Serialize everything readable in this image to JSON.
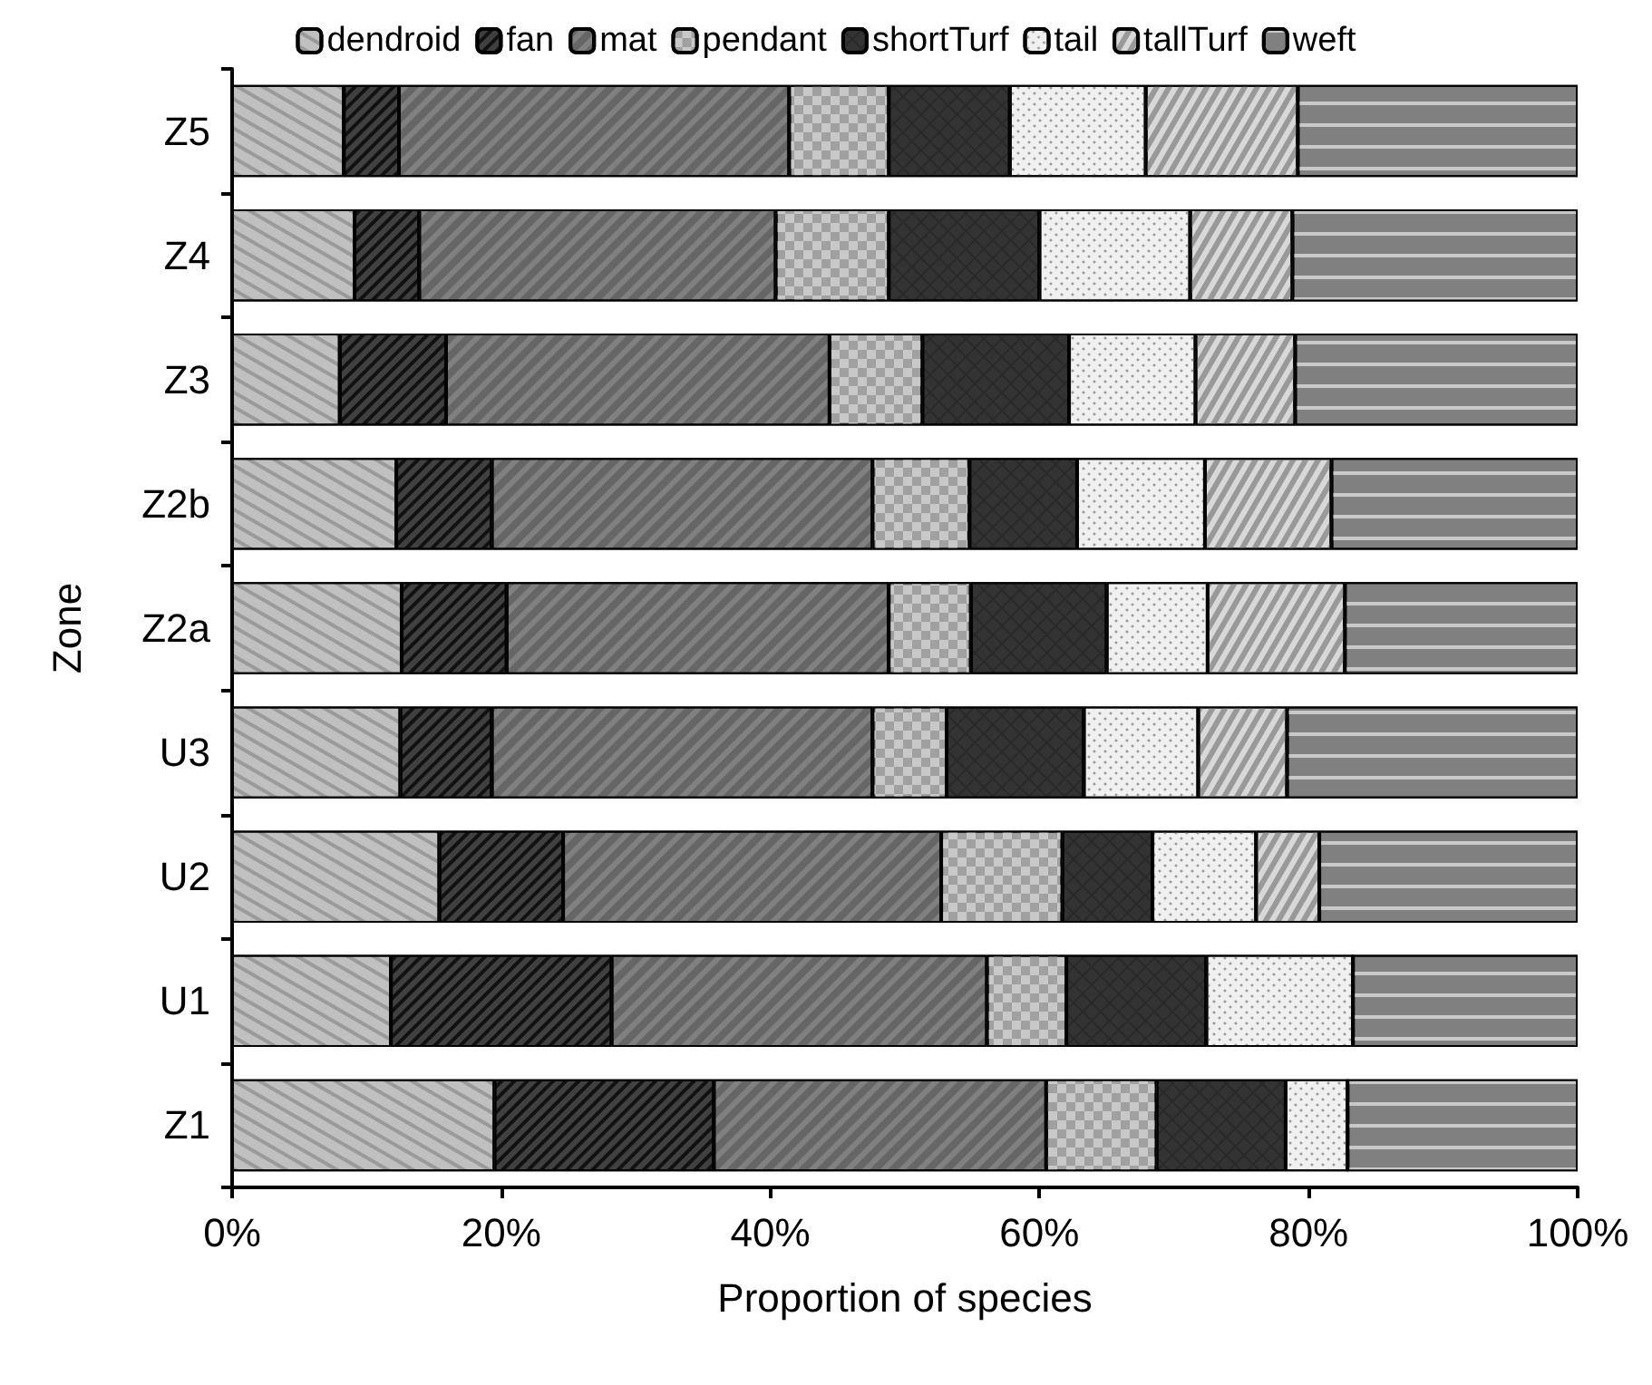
{
  "chart_data": {
    "type": "bar",
    "orientation": "horizontal",
    "stacked": true,
    "categories": [
      "Z5",
      "Z4",
      "Z3",
      "Z2b",
      "Z2a",
      "U3",
      "U2",
      "U1",
      "Z1"
    ],
    "xlabel": "Proportion of species",
    "ylabel": "Zone",
    "xlim": [
      0,
      100
    ],
    "xticks": [
      {
        "value": 0,
        "label": "0%"
      },
      {
        "value": 20,
        "label": "20%"
      },
      {
        "value": 40,
        "label": "40%"
      },
      {
        "value": 60,
        "label": "60%"
      },
      {
        "value": 80,
        "label": "80%"
      },
      {
        "value": 100,
        "label": "100%"
      }
    ],
    "grid": false,
    "legend": "top",
    "series": [
      {
        "name": "dendroid",
        "color": "#c0c0c0",
        "values": [
          8.3,
          9.1,
          8.0,
          12.2,
          12.6,
          12.5,
          15.4,
          11.8,
          19.5
        ]
      },
      {
        "name": "fan",
        "color": "#404040",
        "values": [
          4.1,
          4.8,
          7.9,
          7.1,
          7.8,
          6.8,
          9.2,
          16.4,
          16.3
        ]
      },
      {
        "name": "mat",
        "color": "#808080",
        "values": [
          29.0,
          26.5,
          28.5,
          28.3,
          28.4,
          28.3,
          28.1,
          27.9,
          24.7
        ]
      },
      {
        "name": "pendant",
        "color": "#a0a0a0",
        "values": [
          7.4,
          8.4,
          6.9,
          7.2,
          6.1,
          5.5,
          9.0,
          5.9,
          8.2
        ]
      },
      {
        "name": "shortTurf",
        "color": "#333333",
        "values": [
          9.0,
          11.2,
          10.9,
          8.0,
          10.1,
          10.2,
          6.7,
          10.4,
          9.6
        ]
      },
      {
        "name": "tail",
        "color": "#f0f0f0",
        "values": [
          10.1,
          11.2,
          9.4,
          9.5,
          7.5,
          8.5,
          7.7,
          10.9,
          4.6
        ]
      },
      {
        "name": "tallTurf",
        "color": "#d8d8d8",
        "values": [
          11.3,
          7.6,
          7.4,
          9.4,
          10.2,
          6.6,
          4.7,
          0,
          0
        ]
      },
      {
        "name": "weft",
        "color": "#808080",
        "values": [
          20.8,
          21.2,
          21.0,
          18.3,
          17.3,
          21.6,
          19.2,
          16.7,
          17.1
        ]
      }
    ]
  }
}
